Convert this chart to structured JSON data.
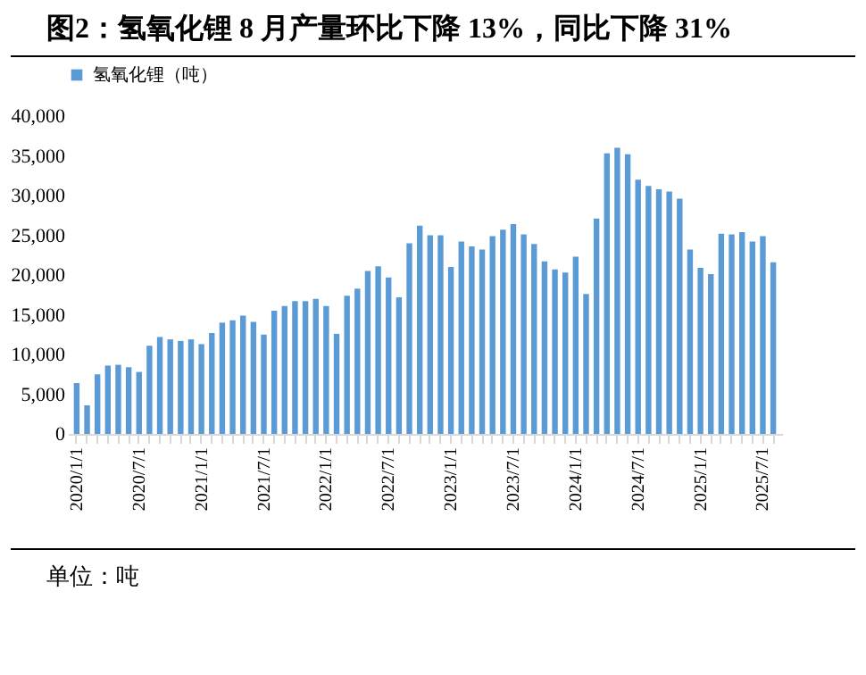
{
  "chart_data": {
    "type": "bar",
    "title": "图2：氢氧化锂 8 月产量环比下降 13%，同比下降 31%",
    "categories": [
      "2020/1/1",
      null,
      null,
      null,
      null,
      null,
      "2020/7/1",
      null,
      null,
      null,
      null,
      null,
      "2021/1/1",
      null,
      null,
      null,
      null,
      null,
      "2021/7/1",
      null,
      null,
      null,
      null,
      null,
      "2022/1/1",
      null,
      null,
      null,
      null,
      null,
      "2022/7/1",
      null,
      null,
      null,
      null,
      null,
      "2023/1/1",
      null,
      null,
      null,
      null,
      null,
      "2023/7/1",
      null,
      null,
      null,
      null,
      null,
      "2024/1/1",
      null,
      null,
      null,
      null,
      null,
      "2024/7/1",
      null,
      null,
      null,
      null,
      null,
      "2025/1/1",
      null,
      null,
      null,
      null,
      null,
      "2025/7/1",
      null
    ],
    "series": [
      {
        "name": "氢氧化锂（吨）",
        "color": "#5b9bd5",
        "values": [
          6400,
          3600,
          7500,
          8600,
          8700,
          8400,
          7800,
          11100,
          12200,
          11900,
          11700,
          11900,
          11300,
          12700,
          14000,
          14300,
          14900,
          14100,
          12500,
          15500,
          16100,
          16700,
          16700,
          17000,
          16100,
          12600,
          17400,
          18300,
          20500,
          21100,
          19700,
          17200,
          24000,
          26200,
          25000,
          25000,
          21000,
          24200,
          23600,
          23200,
          24900,
          25700,
          26400,
          25100,
          23900,
          21700,
          20700,
          20300,
          22300,
          17600,
          27100,
          35300,
          36000,
          35200,
          32000,
          31200,
          30800,
          30500,
          29600,
          23200,
          20900,
          20100,
          25200,
          25100,
          25400,
          24200,
          24900,
          21600
        ]
      }
    ],
    "ylim": [
      0,
      40000
    ],
    "yticks": [
      0,
      {
        "value": 5000,
        "label": "5,000"
      },
      {
        "value": 10000,
        "label": "10,000"
      },
      {
        "value": 15000,
        "label": "15,000"
      },
      {
        "value": 20000,
        "label": "20,000"
      },
      {
        "value": 25000,
        "label": "25,000"
      },
      {
        "value": 30000,
        "label": "30,000"
      },
      {
        "value": 35000,
        "label": "35,000"
      },
      {
        "value": 40000,
        "label": "40,000"
      }
    ],
    "grid": false,
    "legend": "top",
    "annotations": [
      "单位：吨"
    ]
  }
}
